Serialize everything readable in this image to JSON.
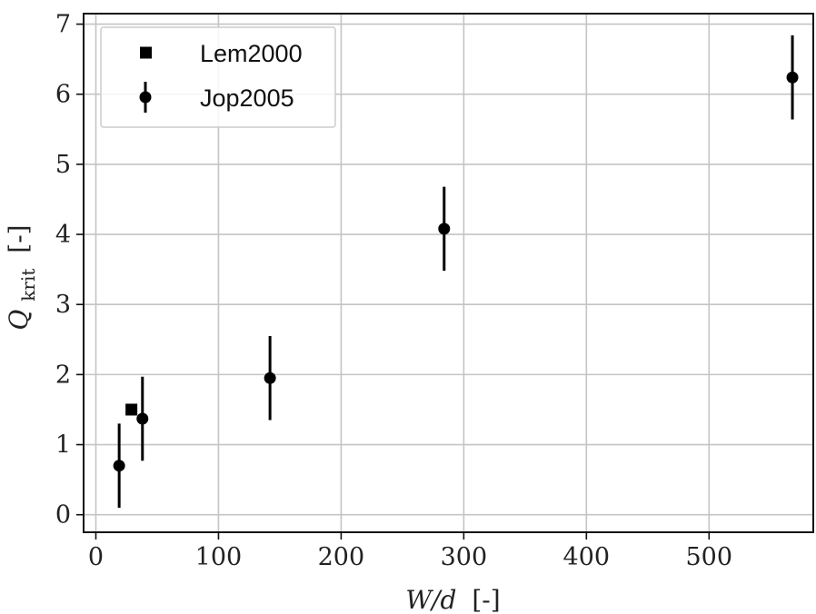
{
  "chart_data": {
    "type": "scatter",
    "title": "",
    "xlabel": {
      "var": "W/d",
      "unit": "[-]"
    },
    "ylabel": {
      "var": "Q",
      "sub": "krit",
      "unit": "[-]"
    },
    "xlim": [
      -10,
      585
    ],
    "ylim": [
      -0.25,
      7.15
    ],
    "xticks": [
      0,
      100,
      200,
      300,
      400,
      500
    ],
    "xtick_labels": [
      "0",
      "100",
      "200",
      "300",
      "400",
      "500"
    ],
    "yticks": [
      0,
      1,
      2,
      3,
      4,
      5,
      6,
      7
    ],
    "ytick_labels": [
      "0",
      "1",
      "2",
      "3",
      "4",
      "5",
      "6",
      "7"
    ],
    "grid": true,
    "legend": "top-left",
    "series": [
      {
        "name": "Lem2000",
        "marker": "square",
        "color": "#000000",
        "points": [
          {
            "x": 29,
            "y": 1.5
          }
        ]
      },
      {
        "name": "Jop2005",
        "marker": "circle",
        "color": "#000000",
        "points": [
          {
            "x": 19,
            "y": 0.7,
            "yerr": 0.6
          },
          {
            "x": 38,
            "y": 1.37,
            "yerr": 0.6
          },
          {
            "x": 142,
            "y": 1.95,
            "yerr": 0.6
          },
          {
            "x": 284,
            "y": 4.08,
            "yerr": 0.6
          },
          {
            "x": 568,
            "y": 6.24,
            "yerr": 0.6
          }
        ]
      }
    ]
  }
}
